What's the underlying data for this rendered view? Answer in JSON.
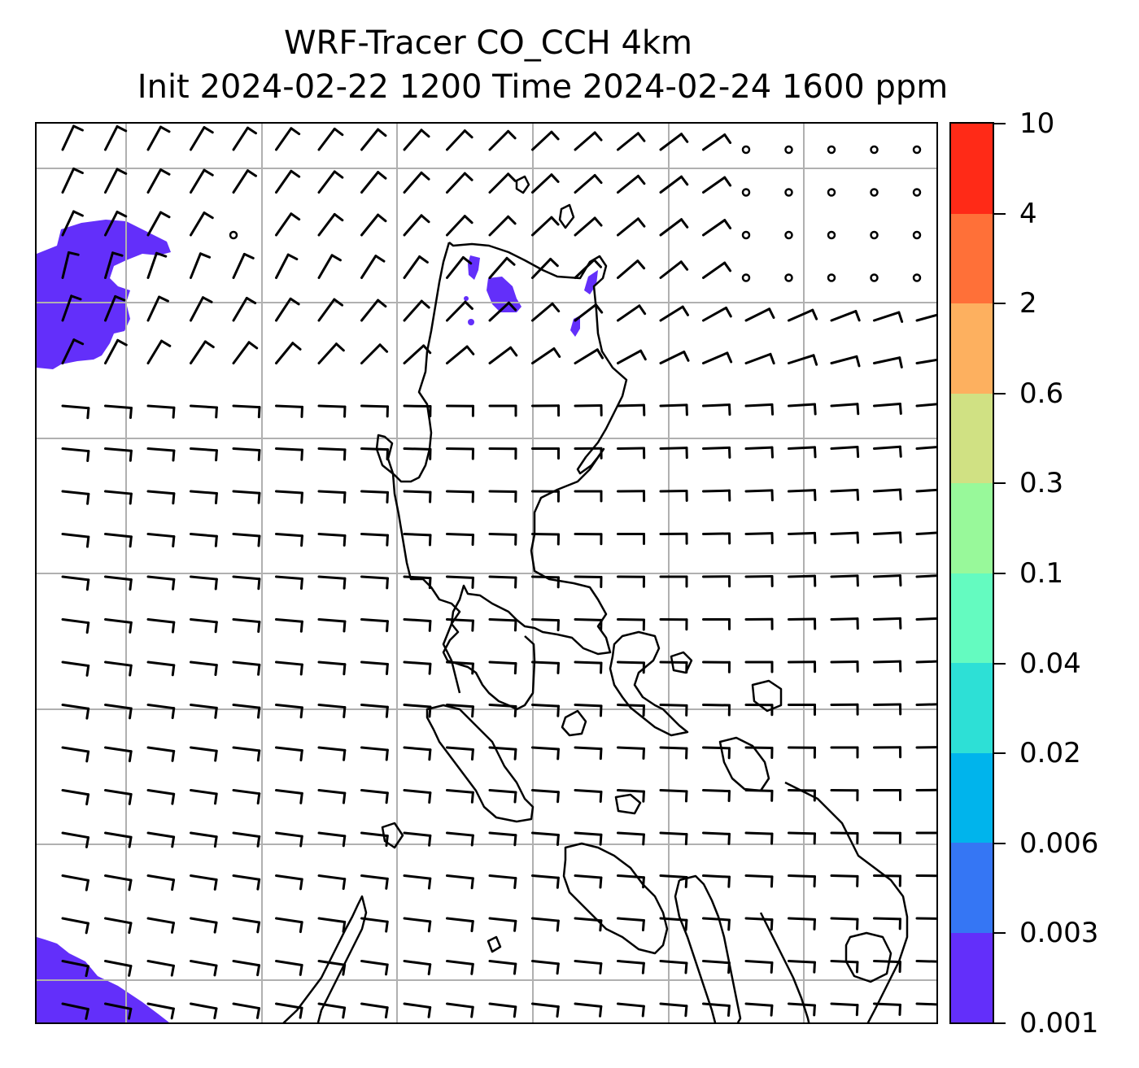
{
  "title": {
    "line1": "WRF-Tracer CO_CCH 4km",
    "line2": "Init 2024-02-22 1200 Time 2024-02-24 1600 ppm"
  },
  "colorbar": {
    "labels": [
      "10",
      "4",
      "2",
      "0.6",
      "0.3",
      "0.1",
      "0.04",
      "0.02",
      "0.006",
      "0.003",
      "0.001"
    ],
    "colors": [
      "#ff2a17",
      "#ff7038",
      "#fdb05f",
      "#d0e183",
      "#98f99a",
      "#64fbc0",
      "#2de0d6",
      "#00b4ec",
      "#3576f4",
      "#632ffa"
    ]
  },
  "map": {
    "tracer_color": "#632ffa",
    "coastline_color": "#000000",
    "gridline_color": "#b0b0b0",
    "barb_color": "#000000",
    "tracer_level": "0.001-0.003 ppm"
  }
}
